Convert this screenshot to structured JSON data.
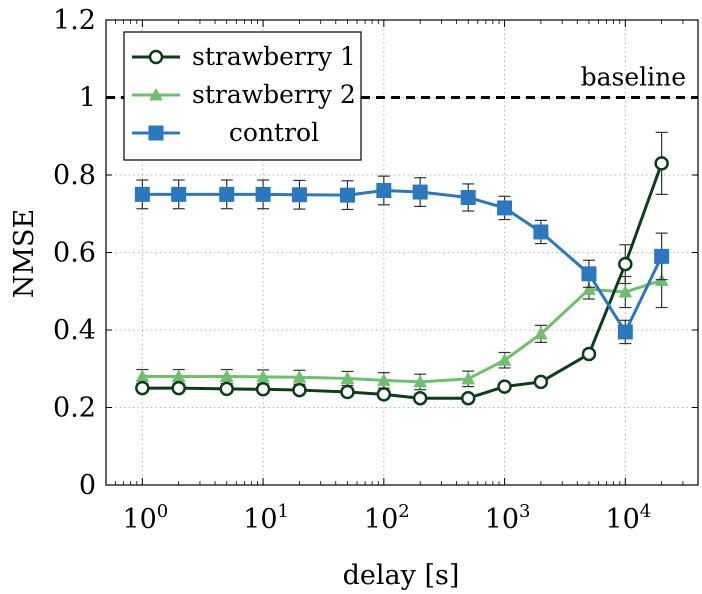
{
  "chart_data": {
    "type": "line",
    "title": "",
    "xlabel": "delay [s]",
    "ylabel": "NMSE",
    "x_scale": "log",
    "xlim": [
      0.5,
      40000
    ],
    "ylim": [
      0,
      1.2
    ],
    "grid": true,
    "legend_position": "top-left",
    "x_ticks": [
      {
        "value": 1,
        "base": "10",
        "exp": "0"
      },
      {
        "value": 10,
        "base": "10",
        "exp": "1"
      },
      {
        "value": 100,
        "base": "10",
        "exp": "2"
      },
      {
        "value": 1000,
        "base": "10",
        "exp": "3"
      },
      {
        "value": 10000,
        "base": "10",
        "exp": "4"
      }
    ],
    "y_ticks": [
      {
        "value": 0,
        "label": "0"
      },
      {
        "value": 0.2,
        "label": "0.2"
      },
      {
        "value": 0.4,
        "label": "0.4"
      },
      {
        "value": 0.6,
        "label": "0.6"
      },
      {
        "value": 0.8,
        "label": "0.8"
      },
      {
        "value": 1.0,
        "label": "1"
      },
      {
        "value": 1.2,
        "label": "1.2"
      }
    ],
    "x": [
      1,
      2,
      5,
      10,
      20,
      50,
      100,
      200,
      500,
      1000,
      2000,
      5000,
      10000,
      20000
    ],
    "series": [
      {
        "name": "strawberry 1",
        "color": "#0b3d1a",
        "marker": "circle-open",
        "values": [
          0.25,
          0.25,
          0.248,
          0.247,
          0.245,
          0.24,
          0.234,
          0.224,
          0.224,
          0.254,
          0.266,
          0.338,
          0.57,
          0.83
        ],
        "errors": [
          0,
          0,
          0,
          0,
          0,
          0,
          0,
          0,
          0,
          0,
          0,
          0,
          0.05,
          0.08
        ]
      },
      {
        "name": "strawberry 2",
        "color": "#6fbf6f",
        "marker": "triangle",
        "values": [
          0.28,
          0.28,
          0.28,
          0.279,
          0.278,
          0.275,
          0.27,
          0.266,
          0.274,
          0.322,
          0.39,
          0.505,
          0.498,
          0.528
        ],
        "errors": [
          0.018,
          0.018,
          0.018,
          0.018,
          0.018,
          0.018,
          0.02,
          0.02,
          0.02,
          0.02,
          0.022,
          0.025,
          0.04,
          0.07
        ]
      },
      {
        "name": "control",
        "color": "#2a78c0",
        "marker": "square",
        "values": [
          0.75,
          0.75,
          0.75,
          0.75,
          0.749,
          0.748,
          0.76,
          0.756,
          0.742,
          0.715,
          0.653,
          0.545,
          0.395,
          0.59
        ],
        "errors": [
          0.037,
          0.037,
          0.037,
          0.037,
          0.037,
          0.037,
          0.037,
          0.037,
          0.035,
          0.03,
          0.03,
          0.035,
          0.03,
          0.06
        ]
      }
    ],
    "baseline": {
      "y": 1.0,
      "label": "baseline",
      "color": "#000000"
    }
  }
}
